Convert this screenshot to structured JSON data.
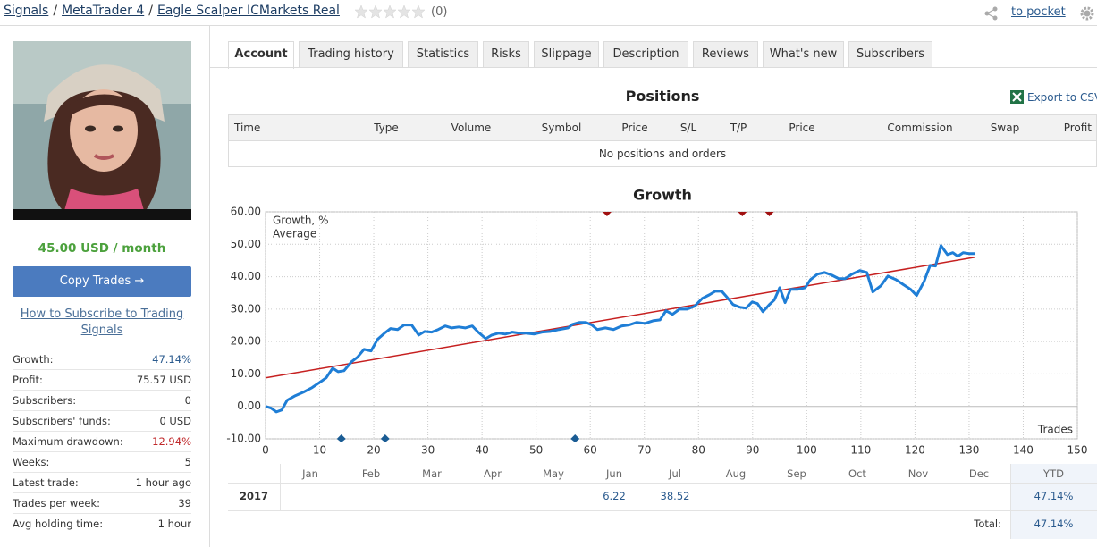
{
  "breadcrumb": [
    "Signals",
    "MetaTrader 4",
    "Eagle Scalper ICMarkets Real"
  ],
  "breadcrumb_separator": "/",
  "rating_count": "(0)",
  "pocket_link": "to pocket",
  "price": "45.00 USD / month",
  "copy_button": "Copy Trades →",
  "subscribe_link": "How to Subscribe to Trading Signals",
  "stats": [
    {
      "label": "Growth:",
      "value": "47.14%",
      "color": "#2a5a8e"
    },
    {
      "label": "Profit:",
      "value": "75.57 USD"
    },
    {
      "label": "Subscribers:",
      "value": "0"
    },
    {
      "label": "Subscribers' funds:",
      "value": "0 USD"
    },
    {
      "label": "Maximum drawdown:",
      "value": "12.94%",
      "color": "#c0282a"
    },
    {
      "label": "Weeks:",
      "value": "5"
    },
    {
      "label": "Latest trade:",
      "value": "1 hour ago"
    },
    {
      "label": "Trades per week:",
      "value": "39"
    },
    {
      "label": "Avg holding time:",
      "value": "1 hour"
    }
  ],
  "tabs": [
    "Account",
    "Trading history",
    "Statistics",
    "Risks",
    "Slippage",
    "Description",
    "Reviews",
    "What's new",
    "Subscribers"
  ],
  "active_tab": 0,
  "positions": {
    "title": "Positions",
    "export": "Export to CSV",
    "columns": [
      "Time",
      "Type",
      "Volume",
      "Symbol",
      "Price",
      "S/L",
      "T/P",
      "Price",
      "Commission",
      "Swap",
      "Profit"
    ],
    "empty": "No positions and orders"
  },
  "chart_data": {
    "type": "line",
    "title": "Growth",
    "x_label": "Trades",
    "xlim": [
      0,
      150
    ],
    "xticks": [
      0,
      10,
      20,
      30,
      40,
      50,
      60,
      70,
      80,
      90,
      100,
      110,
      120,
      130,
      140,
      150
    ],
    "ylim": [
      -10,
      60
    ],
    "yticks": [
      {
        "value": 60,
        "label": "60.00"
      },
      {
        "value": 50,
        "label": "50.00"
      },
      {
        "value": 40,
        "label": "40.00"
      },
      {
        "value": 30,
        "label": "30.00"
      },
      {
        "value": 20,
        "label": "20.00"
      },
      {
        "value": 10,
        "label": "10.00"
      },
      {
        "value": 0,
        "label": "0.00"
      },
      {
        "value": -10,
        "label": "-10.00"
      }
    ],
    "grid": true,
    "legend": "top-left",
    "series": [
      {
        "name": "Growth, %",
        "color": "#1f7ed6",
        "x": [
          0,
          1,
          2,
          3,
          4,
          5.5,
          7,
          8.6,
          10,
          11.2,
          12.4,
          13.4,
          14.5,
          15.9,
          17,
          18.2,
          19.5,
          20.7,
          22,
          23.1,
          24.4,
          25.6,
          27,
          28.3,
          29.4,
          30.7,
          31.9,
          33.2,
          34.4,
          35.7,
          36.9,
          38.2,
          39.3,
          40.7,
          41.8,
          43.1,
          44.3,
          45.6,
          46.9,
          48.1,
          49.6,
          51.1,
          52.6,
          54.2,
          55.9,
          56.7,
          58,
          59.2,
          60.3,
          61.3,
          62.8,
          64.3,
          65.8,
          67.1,
          68.6,
          70.1,
          71.6,
          72.9,
          74,
          75.2,
          76.5,
          77.9,
          79.3,
          80.7,
          82,
          83.1,
          84.3,
          85.3,
          86.4,
          87.6,
          88.8,
          89.9,
          90.9,
          91.9,
          93.1,
          94,
          95,
          96,
          97,
          98.3,
          99.7,
          100.7,
          102,
          103.3,
          104.6,
          105.9,
          107.1,
          108.4,
          109.8,
          111.1,
          112.2,
          113.7,
          115,
          116.5,
          117.9,
          119.2,
          120.3,
          121.7,
          122.8,
          123.8,
          124.8,
          126,
          127,
          127.9,
          128.9,
          130.1,
          131.1
        ],
        "values": [
          0,
          -0.5,
          -1.7,
          -1.1,
          1.9,
          3.3,
          4.4,
          5.8,
          7.4,
          8.8,
          11.8,
          10.7,
          11,
          13.8,
          15.2,
          17.6,
          17.1,
          20.7,
          22.6,
          24,
          23.7,
          25.1,
          25.1,
          22,
          23.1,
          22.9,
          23.7,
          24.8,
          24.2,
          24.5,
          24.2,
          24.8,
          22.9,
          20.9,
          22,
          22.6,
          22.3,
          22.9,
          22.6,
          22.6,
          22.3,
          22.9,
          23.1,
          23.7,
          24.2,
          25.3,
          25.9,
          25.9,
          25.1,
          23.7,
          24.2,
          23.7,
          24.8,
          25.1,
          25.9,
          25.6,
          26.4,
          26.7,
          29.5,
          28.4,
          30,
          30,
          30.9,
          33.3,
          34.4,
          35.5,
          35.5,
          33.6,
          31.4,
          30.6,
          30.3,
          32.2,
          31.7,
          29.2,
          31.4,
          32.8,
          36.6,
          32,
          36.1,
          36.1,
          36.6,
          39.1,
          40.8,
          41.3,
          40.5,
          39.4,
          39.4,
          40.8,
          41.9,
          41.3,
          35.3,
          37.2,
          40.2,
          39.1,
          37.5,
          36.1,
          34.2,
          38.6,
          43.5,
          43.3,
          49.6,
          46.8,
          47.4,
          46.3,
          47.4,
          47.1,
          47.1
        ]
      },
      {
        "name": "Average",
        "color": "#c62020",
        "x": [
          0,
          131.1
        ],
        "values": [
          8.8,
          46
        ]
      }
    ],
    "markers_top": {
      "color": "#a01010",
      "x": [
        63.1,
        88.1,
        93.1
      ]
    },
    "markers_bottom": {
      "color": "#1a5c94",
      "x": [
        14,
        22.1,
        57.2
      ]
    }
  },
  "monthly": {
    "months": [
      "Jan",
      "Feb",
      "Mar",
      "Apr",
      "May",
      "Jun",
      "Jul",
      "Aug",
      "Sep",
      "Oct",
      "Nov",
      "Dec"
    ],
    "ytd_header": "YTD",
    "rows": [
      {
        "year": "2017",
        "values": [
          null,
          null,
          null,
          null,
          null,
          "6.22",
          "38.52",
          null,
          null,
          null,
          null,
          null
        ],
        "ytd": "47.14%"
      }
    ],
    "total_label": "Total:",
    "total": "47.14%"
  }
}
